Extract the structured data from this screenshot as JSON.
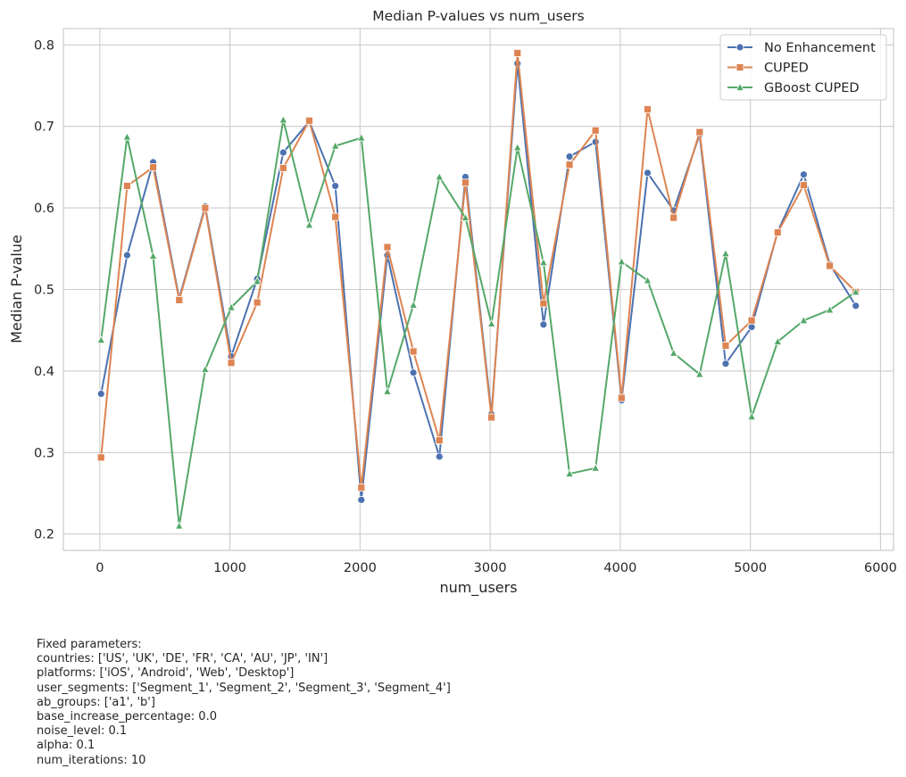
{
  "chart_data": {
    "type": "line",
    "title": "Median P-values vs num_users",
    "xlabel": "num_users",
    "ylabel": "Median P-value",
    "xlim": [
      -280,
      6100
    ],
    "ylim": [
      0.18,
      0.82
    ],
    "xticks": [
      0,
      1000,
      2000,
      3000,
      4000,
      5000,
      6000
    ],
    "yticks": [
      0.2,
      0.3,
      0.4,
      0.5,
      0.6,
      0.7,
      0.8
    ],
    "grid": true,
    "legend_position": "top-right",
    "x": [
      10,
      210,
      410,
      610,
      810,
      1010,
      1210,
      1410,
      1610,
      1810,
      2010,
      2210,
      2410,
      2610,
      2810,
      3010,
      3210,
      3410,
      3610,
      3810,
      4010,
      4210,
      4410,
      4610,
      4810,
      5010,
      5210,
      5410,
      5610,
      5810
    ],
    "series": [
      {
        "name": "No Enhancement",
        "color": "#4c72b0",
        "marker": "circle",
        "values": [
          0.372,
          0.542,
          0.656,
          0.489,
          0.602,
          0.418,
          0.513,
          0.668,
          0.706,
          0.627,
          0.242,
          0.542,
          0.398,
          0.295,
          0.638,
          0.347,
          0.777,
          0.457,
          0.663,
          0.681,
          0.364,
          0.643,
          0.597,
          0.69,
          0.409,
          0.454,
          0.571,
          0.641,
          0.531,
          0.48
        ]
      },
      {
        "name": "CUPED",
        "color": "#dd8452",
        "marker": "square",
        "values": [
          0.294,
          0.627,
          0.65,
          0.487,
          0.6,
          0.41,
          0.484,
          0.649,
          0.707,
          0.589,
          0.257,
          0.552,
          0.424,
          0.315,
          0.631,
          0.343,
          0.79,
          0.483,
          0.653,
          0.695,
          0.367,
          0.721,
          0.588,
          0.693,
          0.431,
          0.462,
          0.57,
          0.628,
          0.529,
          0.497
        ]
      },
      {
        "name": "GBoost CUPED",
        "color": "#55a868",
        "marker": "triangle",
        "values": [
          0.438,
          0.687,
          0.541,
          0.21,
          0.402,
          0.478,
          0.51,
          0.708,
          0.579,
          0.676,
          0.686,
          0.375,
          0.481,
          0.638,
          0.588,
          0.458,
          0.674,
          0.533,
          0.274,
          0.281,
          0.534,
          0.511,
          0.422,
          0.396,
          0.544,
          0.344,
          0.436,
          0.462,
          0.475,
          0.497
        ]
      }
    ]
  },
  "footnote": [
    "Fixed parameters:",
    "countries: ['US', 'UK', 'DE', 'FR', 'CA', 'AU', 'JP', 'IN']",
    "platforms: ['iOS', 'Android', 'Web', 'Desktop']",
    "user_segments: ['Segment_1', 'Segment_2', 'Segment_3', 'Segment_4']",
    "ab_groups: ['a1', 'b']",
    "base_increase_percentage: 0.0",
    "noise_level: 0.1",
    "alpha: 0.1",
    "num_iterations: 10"
  ]
}
